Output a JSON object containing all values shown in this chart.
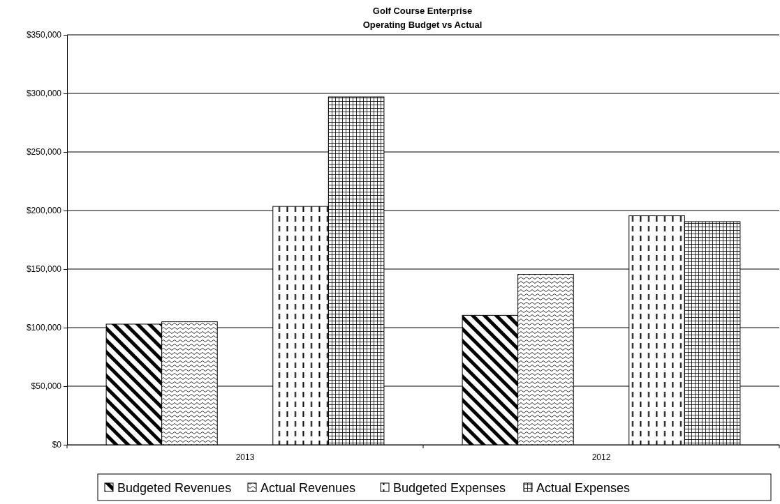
{
  "chart_data": {
    "type": "bar",
    "title": "Golf Course Enterprise\nOperating Budget vs Actual",
    "categories": [
      "2013",
      "2012"
    ],
    "series": [
      {
        "name": "Budgeted Revenues",
        "color": "#000000",
        "values": [
          103000,
          110500
        ]
      },
      {
        "name": "Actual Revenues",
        "color": "#000000",
        "values": [
          105000,
          145500
        ]
      },
      {
        "name": "Budgeted Expenses",
        "color": "#000000",
        "values": [
          203500,
          195500
        ]
      },
      {
        "name": "Actual Expenses",
        "color": "#000000",
        "values": [
          297000,
          190500
        ]
      }
    ],
    "ylim": [
      0,
      350000
    ],
    "yticks": [
      {
        "value": 0,
        "label": "$0"
      },
      {
        "value": 50000,
        "label": "$50,000"
      },
      {
        "value": 100000,
        "label": "$100,000"
      },
      {
        "value": 150000,
        "label": "$150,000"
      },
      {
        "value": 200000,
        "label": "$200,000"
      },
      {
        "value": 250000,
        "label": "$250,000"
      },
      {
        "value": 300000,
        "label": "$300,000"
      },
      {
        "value": 350000,
        "label": "$350,000"
      }
    ],
    "grid": "y",
    "legend": "bottom"
  }
}
